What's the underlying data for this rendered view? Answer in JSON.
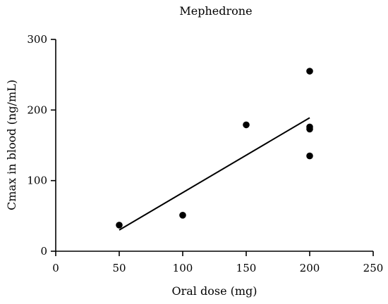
{
  "chart_data": {
    "type": "scatter",
    "title": "Mephedrone",
    "xlabel": "Oral dose (mg)",
    "ylabel": "Cmax in blood (ng/mL)",
    "xlim": [
      0,
      250
    ],
    "ylim": [
      0,
      300
    ],
    "xticks": [
      "0",
      "50",
      "100",
      "150",
      "200",
      "250"
    ],
    "yticks": [
      "0",
      "100",
      "200",
      "300"
    ],
    "xtick_values": [
      0,
      50,
      100,
      150,
      200,
      250
    ],
    "ytick_values": [
      0,
      100,
      200,
      300
    ],
    "grid": false,
    "series": [
      {
        "type": "scatter",
        "points": [
          {
            "x": 50,
            "y": 37
          },
          {
            "x": 100,
            "y": 51
          },
          {
            "x": 150,
            "y": 179
          },
          {
            "x": 200,
            "y": 255
          },
          {
            "x": 200,
            "y": 176
          },
          {
            "x": 200,
            "y": 173
          },
          {
            "x": 200,
            "y": 135
          }
        ]
      },
      {
        "type": "line",
        "points": [
          {
            "x": 50,
            "y": 30
          },
          {
            "x": 200,
            "y": 189
          }
        ]
      }
    ],
    "colors": {
      "points": "#000000",
      "line": "#000000",
      "axes": "#000000"
    }
  }
}
